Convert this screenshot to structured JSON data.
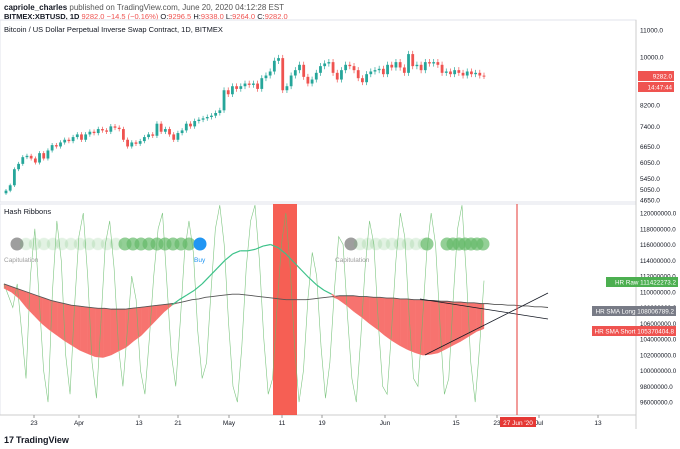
{
  "header": {
    "author": "capriole_charles",
    "published": "published on TradingView.com, June 20, 2020 04:12:28 EST",
    "symbol": "BITMEX:XBTUSD, 1D",
    "price": "9282.0",
    "change": "−14.5 (−0.16%)",
    "o_label": "O:",
    "o": "9296.5",
    "h_label": "H:",
    "h": "9338.0",
    "l_label": "L:",
    "l": "9264.0",
    "c_label": "C:",
    "c": "9282.0"
  },
  "colors": {
    "up": "#26a69a",
    "down": "#ef5350",
    "ribbon_fill": "#f7736f",
    "raw": "#66bb6a",
    "sma_long": "#555555",
    "sma_short": "#3dc28a",
    "bar": "#f44336",
    "badge_green": "#4caf50",
    "badge_gray": "#787b86",
    "badge_red": "#ef5350",
    "buy_dot": "#2196f3",
    "gray_dot": "#9e9e9e",
    "green_dot": "#66bb6a"
  },
  "chart_data": [
    {
      "type": "candlestick",
      "title": "Bitcoin / US Dollar Perpetual Inverse Swap Contract, 1D, BITMEX",
      "ylim": [
        4650,
        11000
      ],
      "y_ticks": [
        "11000.0",
        "10000.0",
        "9282.0",
        "8200.0",
        "7400.0",
        "6650.0",
        "6050.0",
        "5450.0",
        "5050.0",
        "4650.0"
      ],
      "y_tick_values": [
        11000,
        10000,
        9282,
        8200,
        7400,
        6650,
        6050,
        5450,
        5050,
        4650
      ],
      "last_price_label": "9282.0",
      "countdown_label": "14:47:44",
      "closes": [
        5000,
        5200,
        5800,
        6000,
        6250,
        6300,
        6200,
        6050,
        6400,
        6200,
        6500,
        6700,
        6650,
        6800,
        6900,
        6850,
        7000,
        7100,
        6900,
        7100,
        7200,
        7150,
        7300,
        7250,
        7200,
        7400,
        7350,
        7300,
        6900,
        6650,
        6800,
        6750,
        6850,
        7000,
        7100,
        7050,
        7500,
        7200,
        7300,
        7100,
        6900,
        7150,
        7250,
        7500,
        7400,
        7600,
        7650,
        7700,
        7750,
        7800,
        7900,
        8000,
        8750,
        8600,
        8900,
        8800,
        8900,
        9000,
        8950,
        9000,
        8800,
        9200,
        9300,
        9450,
        9850,
        9950,
        8750,
        8900,
        9300,
        9500,
        9700,
        9250,
        9000,
        9150,
        9400,
        9650,
        9750,
        9800,
        9400,
        9150,
        9500,
        9700,
        9650,
        9500,
        9200,
        9050,
        9350,
        9450,
        9500,
        9550,
        9350,
        9700,
        9600,
        9800,
        9600,
        9400,
        10100,
        9650,
        9700,
        9500,
        9800,
        9750,
        9800,
        9700,
        9400,
        9450,
        9350,
        9500,
        9400,
        9300,
        9450,
        9350,
        9400,
        9300,
        9280
      ],
      "opens": [
        4900,
        5000,
        5200,
        5800,
        6000,
        6250,
        6300,
        6200,
        6050,
        6400,
        6200,
        6500,
        6700,
        6650,
        6800,
        6900,
        6850,
        7000,
        7100,
        6900,
        7100,
        7200,
        7150,
        7300,
        7250,
        7200,
        7400,
        7350,
        7300,
        6900,
        6650,
        6800,
        6750,
        6850,
        7000,
        7100,
        7050,
        7500,
        7200,
        7300,
        7100,
        6900,
        7150,
        7250,
        7500,
        7400,
        7600,
        7650,
        7700,
        7750,
        7800,
        7900,
        8000,
        8750,
        8600,
        8900,
        8800,
        8900,
        9000,
        8950,
        9000,
        8800,
        9200,
        9300,
        9450,
        9850,
        9950,
        8750,
        8900,
        9300,
        9500,
        9700,
        9250,
        9000,
        9150,
        9400,
        9650,
        9750,
        9800,
        9400,
        9150,
        9500,
        9700,
        9650,
        9500,
        9200,
        9050,
        9350,
        9450,
        9500,
        9550,
        9350,
        9700,
        9600,
        9800,
        9600,
        9400,
        10100,
        9650,
        9700,
        9500,
        9800,
        9750,
        9800,
        9700,
        9400,
        9450,
        9350,
        9500,
        9400,
        9300,
        9450,
        9350,
        9400,
        9296
      ]
    },
    {
      "type": "line",
      "title": "Hash Ribbons",
      "ylim": [
        95000000,
        120000000
      ],
      "y_ticks": [
        "120000000.0",
        "118000000.0",
        "116000000.0",
        "114000000.0",
        "112000000.0",
        "110000000.0",
        "108000000.0",
        "106000000.0",
        "104000000.0",
        "102000000.0",
        "100000000.0",
        "98000000.0",
        "96000000.0"
      ],
      "y_tick_values": [
        120000000,
        118000000,
        116000000,
        114000000,
        112000000,
        110000000,
        108000000,
        106000000,
        104000000,
        102000000,
        100000000,
        98000000,
        96000000
      ],
      "series": [
        {
          "name": "HR Raw",
          "last_label": "111422273.2",
          "values": [
            111000000,
            109500000,
            108000000,
            111000000,
            105000000,
            99000000,
            112000000,
            118000000,
            109000000,
            100000000,
            96000000,
            110000000,
            119000000,
            114000000,
            102000000,
            97000000,
            108000000,
            117000000,
            120000000,
            112000000,
            101000000,
            96500000,
            106000000,
            116000000,
            119000000,
            113000000,
            103000000,
            98000000,
            105000000,
            112000000,
            109000000,
            100000000,
            97000000,
            104000000,
            112000000,
            118000000,
            120000000,
            111000000,
            102000000,
            98000000,
            106000000,
            115000000,
            119000000,
            115000000,
            105000000,
            99000000,
            101000000,
            110000000,
            118000000,
            121000000,
            116000000,
            106000000,
            98000000,
            96000000,
            103000000,
            113000000,
            119000000,
            121000000,
            114000000,
            104000000,
            97000000,
            99000000,
            108000000,
            116000000,
            120000000,
            113000000,
            103000000,
            96000000,
            100000000,
            109000000,
            115000000,
            112000000,
            103000000,
            96500000,
            101000000,
            110000000,
            117000000,
            116000000,
            107000000,
            99000000,
            96000000,
            104000000,
            113000000,
            119000000,
            116000000,
            106000000,
            98000000,
            97000000,
            105000000,
            114000000,
            120000000,
            117000000,
            107000000,
            99000000,
            98000000,
            106000000,
            115000000,
            120000000,
            116000000,
            106000000,
            97000000,
            99000000,
            109000000,
            118000000,
            121000000,
            112000000,
            101000000,
            96000000,
            103000000,
            111422273
          ]
        },
        {
          "name": "HR SMA Long",
          "last_label": "108006789.2",
          "values": [
            111000000,
            110700000,
            110400000,
            110100000,
            109800000,
            109500000,
            109200000,
            108900000,
            108700000,
            108500000,
            108300000,
            108200000,
            108100000,
            108000000,
            107900000,
            107900000,
            107800000,
            107800000,
            107800000,
            107900000,
            108000000,
            108100000,
            108200000,
            108300000,
            108400000,
            108500000,
            108600000,
            108800000,
            109000000,
            109100000,
            109300000,
            109400000,
            109500000,
            109600000,
            109700000,
            109700000,
            109600000,
            109500000,
            109400000,
            109300000,
            109200000,
            109100000,
            109000000,
            109000000,
            109000000,
            109000000,
            109100000,
            109200000,
            109300000,
            109400000,
            109500000,
            109500000,
            109500000,
            109400000,
            109400000,
            109300000,
            109300000,
            109200000,
            109200000,
            109100000,
            109100000,
            109000000,
            109000000,
            108900000,
            108900000,
            108800000,
            108800000,
            108700000,
            108700000,
            108600000,
            108600000,
            108500000,
            108500000,
            108400000,
            108400000,
            108300000,
            108300000,
            108200000,
            108200000,
            108100000,
            108100000,
            108006789
          ]
        },
        {
          "name": "HR SMA Short",
          "last_label": "105370404.8",
          "values": [
            110500000,
            110000000,
            109200000,
            108000000,
            107000000,
            106000000,
            105200000,
            104500000,
            103800000,
            103200000,
            102600000,
            102200000,
            101800000,
            101700000,
            102000000,
            102500000,
            103000000,
            103800000,
            104500000,
            105500000,
            106500000,
            107500000,
            108300000,
            109000000,
            109600000,
            110200000,
            111000000,
            112000000,
            113000000,
            114000000,
            114800000,
            115200000,
            115200000,
            115400000,
            115800000,
            116000000,
            115600000,
            114800000,
            113800000,
            112800000,
            111800000,
            110900000,
            110200000,
            109700000,
            109000000,
            108300000,
            107500000,
            106800000,
            106000000,
            105300000,
            104500000,
            103800000,
            103200000,
            102700000,
            102300000,
            102000000,
            102100000,
            102300000,
            102800000,
            103300000,
            103800000,
            104400000,
            105000000,
            105370404
          ]
        }
      ],
      "annotations": [
        "Capitulation",
        "Buy",
        "Capitulation"
      ],
      "date_label": "27 Jun '20",
      "x_ticks": [
        "23",
        "Apr",
        "13",
        "21",
        "May",
        "11",
        "19",
        "Jun",
        "15",
        "23",
        "Jul",
        "13"
      ]
    }
  ],
  "footer": {
    "brand": "TradingView",
    "brand_mark": "17"
  }
}
